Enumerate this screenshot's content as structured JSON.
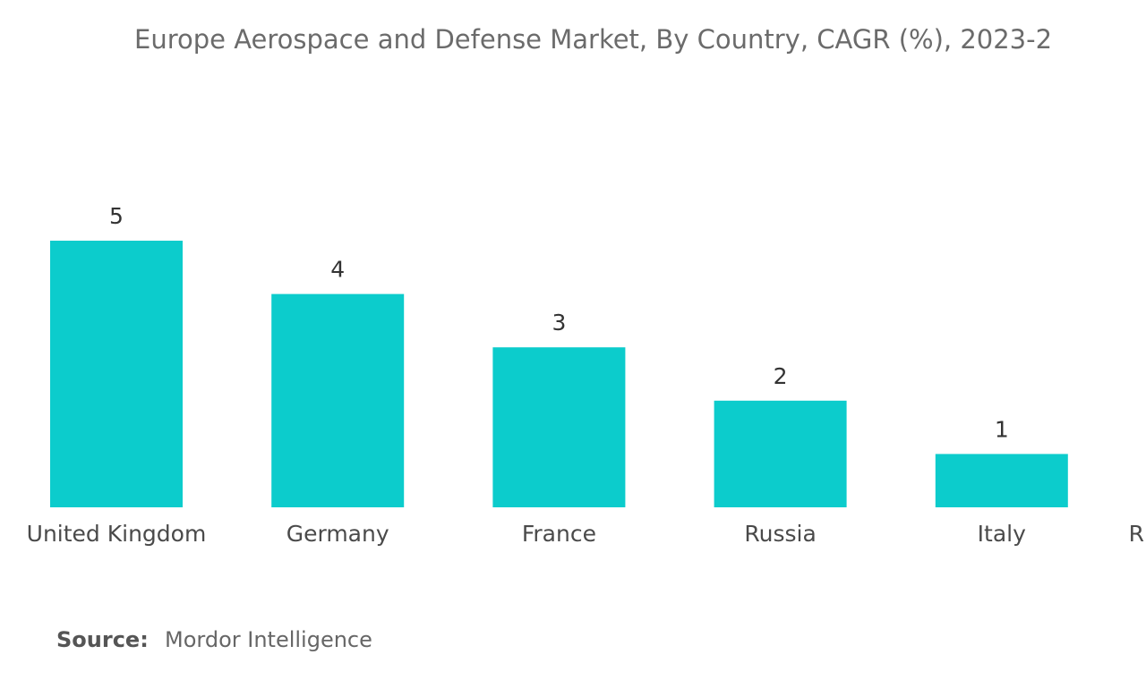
{
  "chart_data": {
    "type": "bar",
    "title": "Europe Aerospace and Defense Market, By Country, CAGR (%), 2023-2",
    "categories": [
      "United Kingdom",
      "Germany",
      "France",
      "Russia",
      "Italy",
      "R"
    ],
    "values": [
      5,
      4,
      3,
      2,
      1,
      null
    ],
    "color": "#0ccccc",
    "source": {
      "label": "Source:",
      "text": "Mordor Intelligence"
    }
  }
}
